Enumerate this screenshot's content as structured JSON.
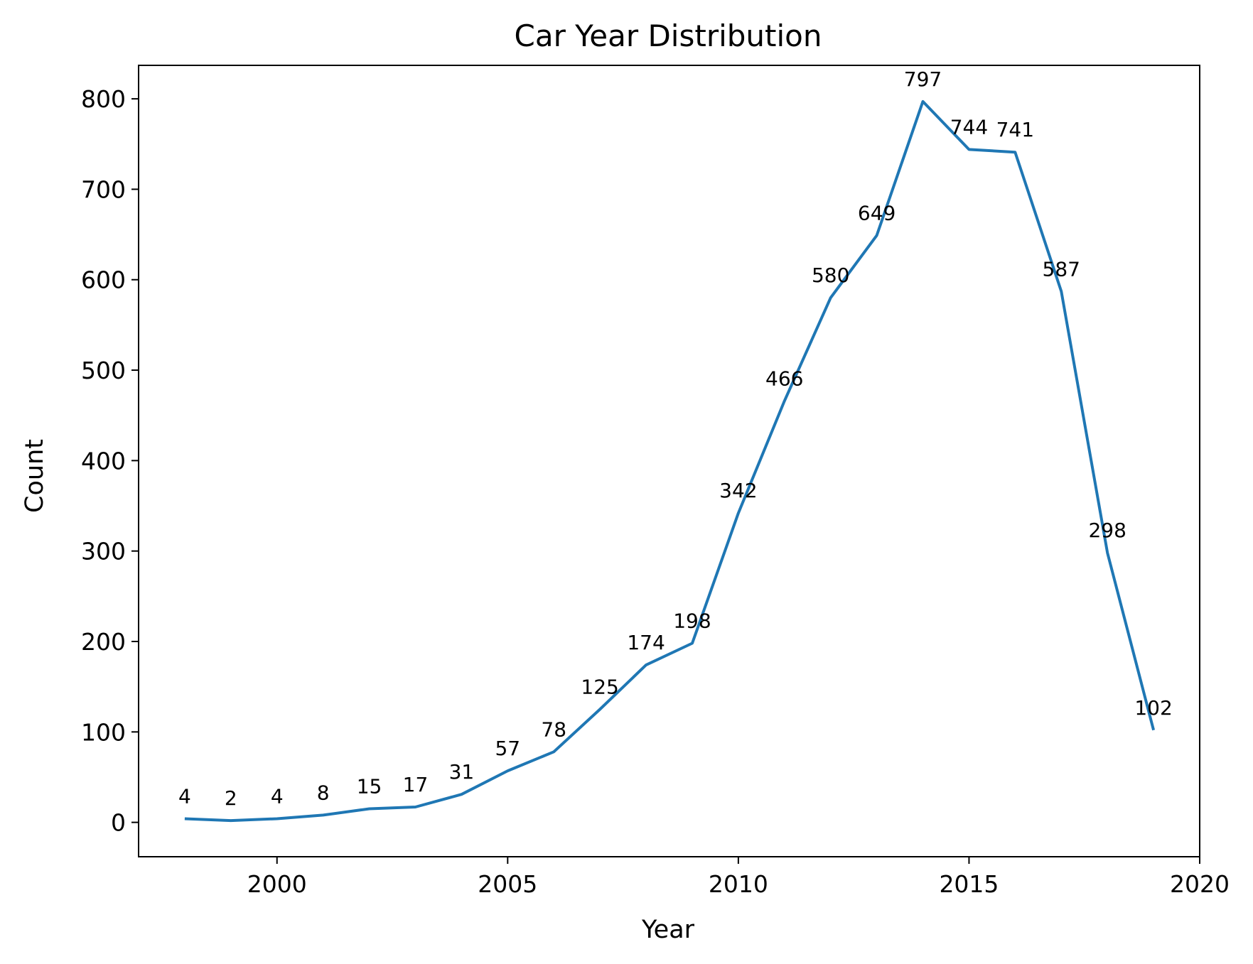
{
  "chart_data": {
    "type": "line",
    "title": "Car Year Distribution",
    "xlabel": "Year",
    "ylabel": "Count",
    "xlim": [
      1997,
      2020
    ],
    "ylim": [
      -38,
      837
    ],
    "xticks": [
      2000,
      2005,
      2010,
      2015,
      2020
    ],
    "yticks": [
      0,
      100,
      200,
      300,
      400,
      500,
      600,
      700,
      800
    ],
    "grid": false,
    "series": [
      {
        "color": "#1f77b4",
        "x": [
          1998,
          1999,
          2000,
          2001,
          2002,
          2003,
          2004,
          2005,
          2006,
          2007,
          2008,
          2009,
          2010,
          2011,
          2012,
          2013,
          2014,
          2015,
          2016,
          2017,
          2018,
          2019
        ],
        "values": [
          4,
          2,
          4,
          8,
          15,
          17,
          31,
          57,
          78,
          125,
          174,
          198,
          342,
          466,
          580,
          649,
          797,
          744,
          741,
          587,
          298,
          102
        ]
      }
    ],
    "data_labels": [
      "4",
      "2",
      "4",
      "8",
      "15",
      "17",
      "31",
      "57",
      "78",
      "125",
      "174",
      "198",
      "342",
      "466",
      "580",
      "649",
      "797",
      "744",
      "741",
      "587",
      "298",
      "102"
    ]
  }
}
